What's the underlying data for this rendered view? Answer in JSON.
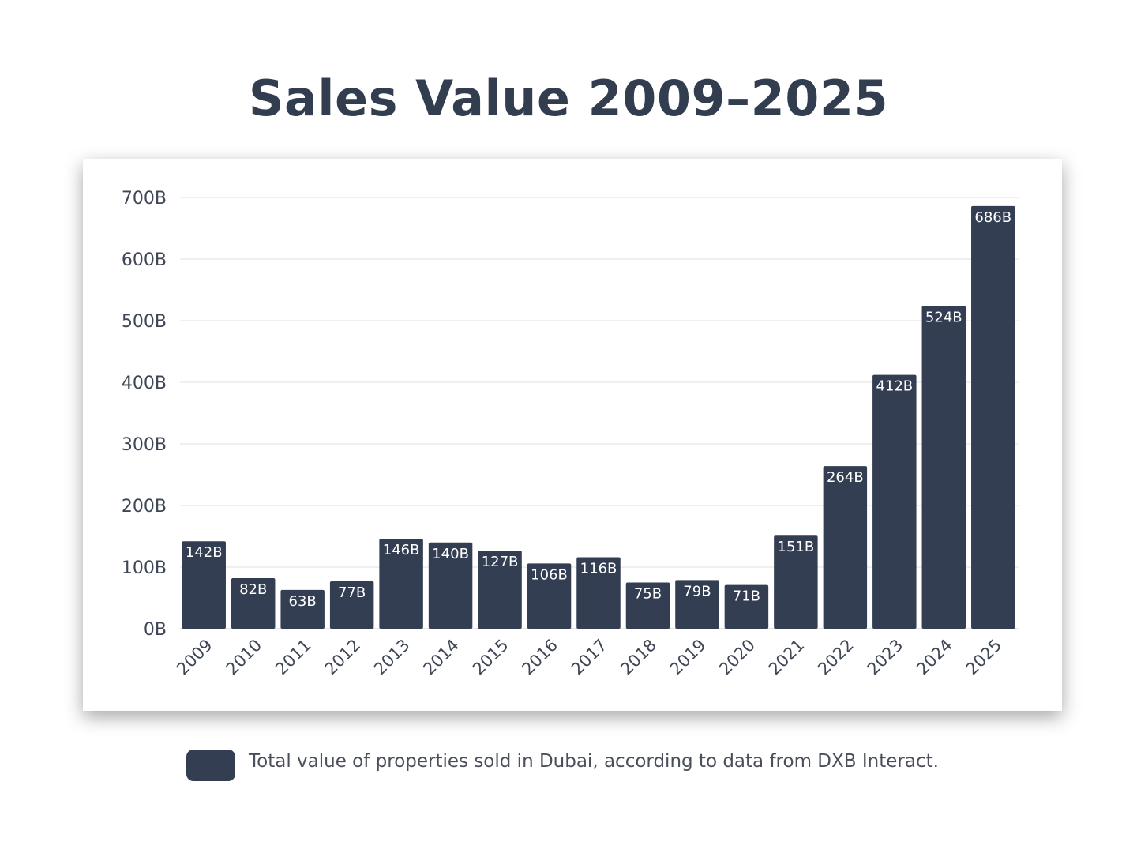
{
  "title": "Sales Value 2009–2025",
  "colors": {
    "bar": "#343e52",
    "title": "#333d50",
    "grid": "#e6e6e6",
    "bar_label": "#ffffff"
  },
  "chart_data": {
    "type": "bar",
    "title": "Sales Value 2009–2025",
    "categories": [
      "2009",
      "2010",
      "2011",
      "2012",
      "2013",
      "2014",
      "2015",
      "2016",
      "2017",
      "2018",
      "2019",
      "2020",
      "2021",
      "2022",
      "2023",
      "2024",
      "2025"
    ],
    "values": [
      142,
      82,
      63,
      77,
      146,
      140,
      127,
      106,
      116,
      75,
      79,
      71,
      151,
      264,
      412,
      524,
      686
    ],
    "data_labels": [
      "142B",
      "82B",
      "63B",
      "77B",
      "146B",
      "140B",
      "127B",
      "106B",
      "116B",
      "75B",
      "79B",
      "71B",
      "151B",
      "264B",
      "412B",
      "524B",
      "686B"
    ],
    "y_ticks": [
      0,
      100,
      200,
      300,
      400,
      500,
      600,
      700
    ],
    "y_tick_labels": [
      "0B",
      "100B",
      "200B",
      "300B",
      "400B",
      "500B",
      "600B",
      "700B"
    ],
    "ylim": [
      0,
      700
    ],
    "xlabel": "",
    "ylabel": "",
    "grid": true,
    "legend_position": "bottom"
  },
  "legend": {
    "text": "Total value of properties sold in Dubai, according to data from DXB Interact."
  }
}
